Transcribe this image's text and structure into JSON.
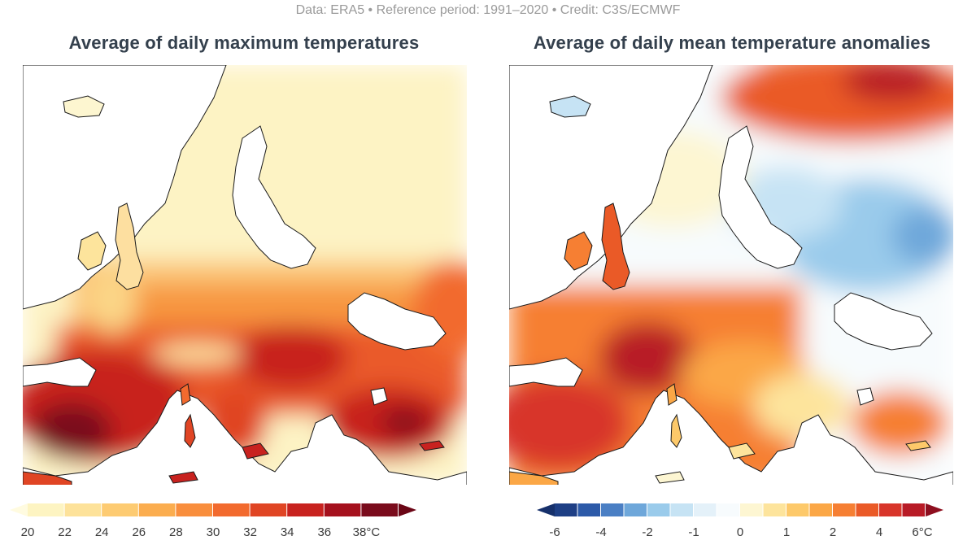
{
  "credit": "Data: ERA5 • Reference period: 1991–2020 • Credit: C3S/ECMWF",
  "panels": [
    {
      "title": "Average of daily maximum temperatures",
      "unit": "°C",
      "colorbar": {
        "colors": [
          "#fdf4c2",
          "#fde29a",
          "#fdcb72",
          "#fbad4f",
          "#f98e3d",
          "#f26a2e",
          "#e04524",
          "#c8221f",
          "#a5111d",
          "#7a0b1c"
        ],
        "under_color": "#fffbe0",
        "over_color": "#6b0616",
        "tick_labels": [
          "20",
          "22",
          "24",
          "26",
          "28",
          "30",
          "32",
          "34",
          "36",
          "38°C"
        ]
      }
    },
    {
      "title": "Average of daily mean temperature anomalies",
      "unit": "°C",
      "colorbar": {
        "colors": [
          "#1e3f85",
          "#2d5aa8",
          "#4a7fc4",
          "#6ea7da",
          "#9acbeb",
          "#c6e3f4",
          "#e4f1f9",
          "#f7fbfd",
          "#fdf6d2",
          "#fde49c",
          "#fdc96a",
          "#fba746",
          "#f67f33",
          "#ea5a27",
          "#d8352a",
          "#b81b26"
        ],
        "under_color": "#16306b",
        "over_color": "#8e0f1f",
        "tick_labels": [
          "-6",
          "-4",
          "-2",
          "-1",
          "0",
          "1",
          "2",
          "4",
          "6°C"
        ]
      }
    }
  ]
}
